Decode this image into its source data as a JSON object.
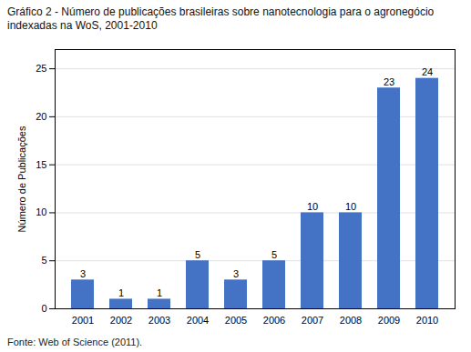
{
  "chart_data": {
    "type": "bar",
    "title": "Gráfico 2 - Número de publicações brasileiras sobre nanotecnologia para o agronegócio indexadas na WoS, 2001-2010",
    "caption": "Fonte: Web of Science (2011).",
    "ylabel": "Número de Publicações",
    "categories": [
      "2001",
      "2002",
      "2003",
      "2004",
      "2005",
      "2006",
      "2007",
      "2008",
      "2009",
      "2010"
    ],
    "values": [
      3,
      1,
      1,
      5,
      3,
      5,
      10,
      10,
      23,
      24
    ],
    "color": "#4472C4",
    "ylim": [
      0,
      27
    ],
    "yticks": [
      0,
      5,
      10,
      15,
      20,
      25
    ],
    "grid": true,
    "data_labels": true
  }
}
